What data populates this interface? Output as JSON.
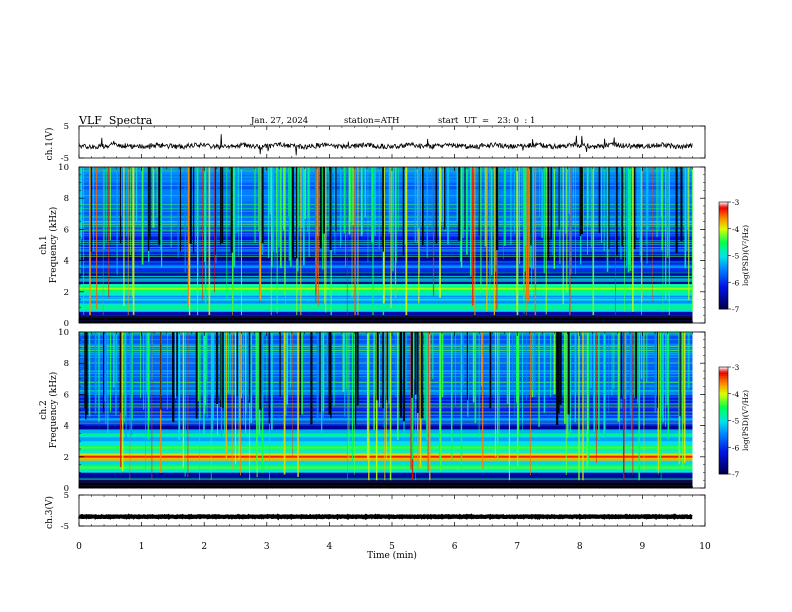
{
  "header": {
    "title": "VLF  Spectra",
    "date": "Jan. 27, 2024",
    "station": "station=ATH",
    "start_ut": "start  UT  =   23: 0  : 1"
  },
  "chart_data": [
    {
      "type": "line",
      "panel": "ch1-waveform",
      "ylabel": "ch.1(V)",
      "ylim": [
        -5,
        5
      ],
      "ytick_labels": [
        "5",
        "-5"
      ],
      "xlim": [
        0,
        10
      ],
      "x_end_min": 9.8,
      "baseline_v": -1.2,
      "color": "#000000"
    },
    {
      "type": "heatmap",
      "panel": "ch1-spectrogram",
      "ylabel": "ch.1\nFrequency (kHz)",
      "ylabel_lines": [
        "ch.1",
        "Frequency (kHz)"
      ],
      "ylim": [
        0,
        10
      ],
      "ytick_labels": [
        "0",
        "2",
        "4",
        "6",
        "8",
        "10"
      ],
      "xlim": [
        0,
        10
      ],
      "x_end_min": 9.8,
      "colorbar": {
        "label": "log(PSD)(V²/Hz)",
        "range": [
          -7,
          -3
        ],
        "tick_labels": [
          "-3",
          "-4",
          "-5",
          "-6",
          "-7"
        ]
      },
      "bands_khz": [
        {
          "f": 1.0,
          "level": -4.8
        },
        {
          "f": 1.5,
          "level": -5.2
        },
        {
          "f": 2.2,
          "level": -4.4
        },
        {
          "f": 3.6,
          "level": -5.6
        },
        {
          "f": 4.7,
          "level": -5.8
        }
      ]
    },
    {
      "type": "heatmap",
      "panel": "ch2-spectrogram",
      "ylabel": "ch.2\nFrequency (kHz)",
      "ylabel_lines": [
        "ch.2",
        "Frequency (kHz)"
      ],
      "ylim": [
        0,
        10
      ],
      "ytick_labels": [
        "0",
        "2",
        "4",
        "6",
        "8",
        "10"
      ],
      "xlim": [
        0,
        10
      ],
      "x_end_min": 9.8,
      "colorbar": {
        "label": "log(PSD)(V²/Hz)",
        "range": [
          -7,
          -3
        ],
        "tick_labels": [
          "-3",
          "-4",
          "-5",
          "-6",
          "-7"
        ]
      },
      "bands_khz": [
        {
          "f": 1.3,
          "level": -4.6
        },
        {
          "f": 2.0,
          "level": -3.6
        },
        {
          "f": 2.6,
          "level": -4.6
        },
        {
          "f": 3.4,
          "level": -4.9
        },
        {
          "f": 4.4,
          "level": -5.5
        }
      ]
    },
    {
      "type": "line",
      "panel": "ch3-waveform",
      "ylabel": "ch.3(V)",
      "ylim": [
        -5,
        5
      ],
      "ytick_labels": [
        "5",
        "-5"
      ],
      "xlim": [
        0,
        10
      ],
      "x_end_min": 9.8,
      "baseline_v": -2.0,
      "color": "#000000"
    }
  ],
  "x_axis": {
    "xlabel": "Time  (min)",
    "tick_labels": [
      "0",
      "1",
      "2",
      "3",
      "4",
      "5",
      "6",
      "7",
      "8",
      "9",
      "10"
    ]
  }
}
